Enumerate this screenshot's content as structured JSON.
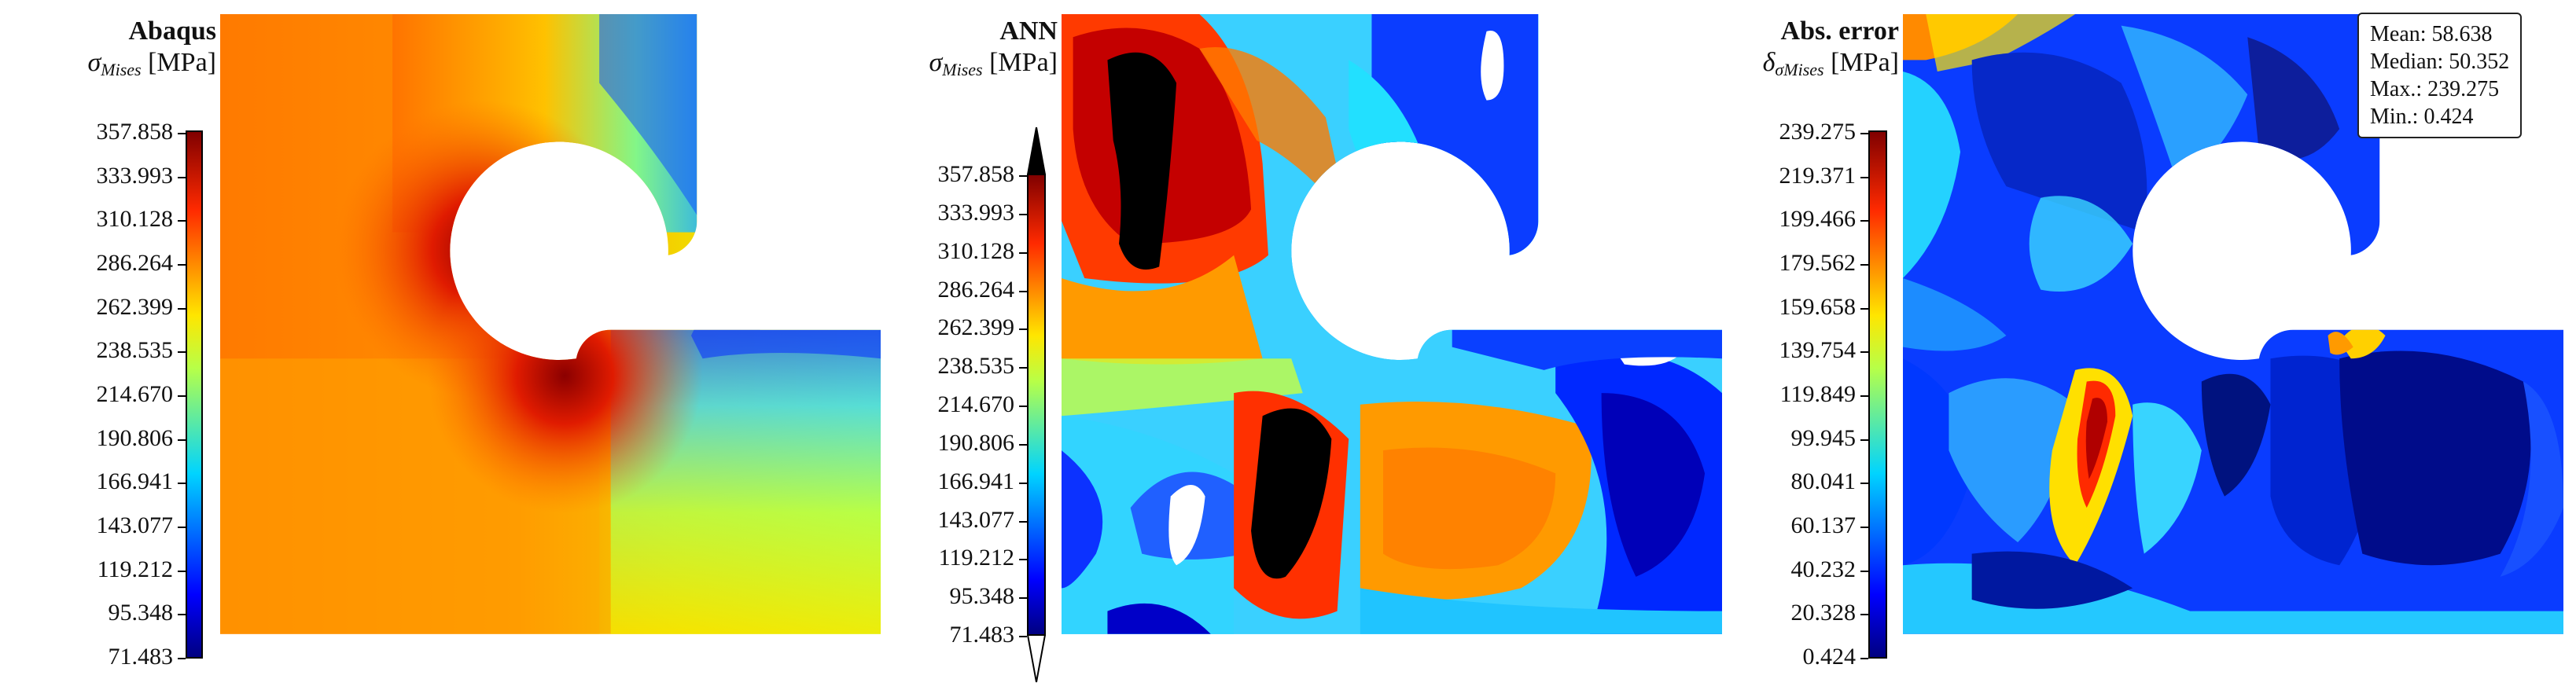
{
  "panels": [
    {
      "title": "Abaqus",
      "quantity": {
        "symbol": "σ",
        "subscript": "Mises",
        "unit": "[MPa]"
      },
      "colorbar_ticks": [
        "357.858",
        "333.993",
        "310.128",
        "286.264",
        "262.399",
        "238.535",
        "214.670",
        "190.806",
        "166.941",
        "143.077",
        "119.212",
        "95.348",
        "71.483"
      ],
      "colorbar_extend": "none"
    },
    {
      "title": "ANN",
      "quantity": {
        "symbol": "σ",
        "subscript": "Mises",
        "unit": "[MPa]"
      },
      "colorbar_ticks": [
        "357.858",
        "333.993",
        "310.128",
        "286.264",
        "262.399",
        "238.535",
        "214.670",
        "190.806",
        "166.941",
        "143.077",
        "119.212",
        "95.348",
        "71.483"
      ],
      "colorbar_extend": "both"
    },
    {
      "title": "Abs. error",
      "quantity": {
        "symbol": "δ",
        "subscript_symbol": "σ",
        "subscript": "Mises",
        "unit": "[MPa]"
      },
      "colorbar_ticks": [
        "239.275",
        "219.371",
        "199.466",
        "179.562",
        "159.658",
        "139.754",
        "119.849",
        "99.945",
        "80.041",
        "60.137",
        "40.232",
        "20.328",
        "0.424"
      ],
      "colorbar_extend": "none",
      "stats": {
        "mean": "Mean: 58.638",
        "median": "Median: 50.352",
        "max": "Max.: 239.275",
        "min": "Min.: 0.424"
      }
    }
  ],
  "colormap": "jet",
  "colors": {
    "dark_red": "#7f0000",
    "red": "#e31a1c",
    "orange": "#ff8c00",
    "yellow": "#f4f400",
    "cyan": "#00d4ff",
    "blue": "#0033ff",
    "dark_blue": "#00007f",
    "overflow": "#000000"
  }
}
